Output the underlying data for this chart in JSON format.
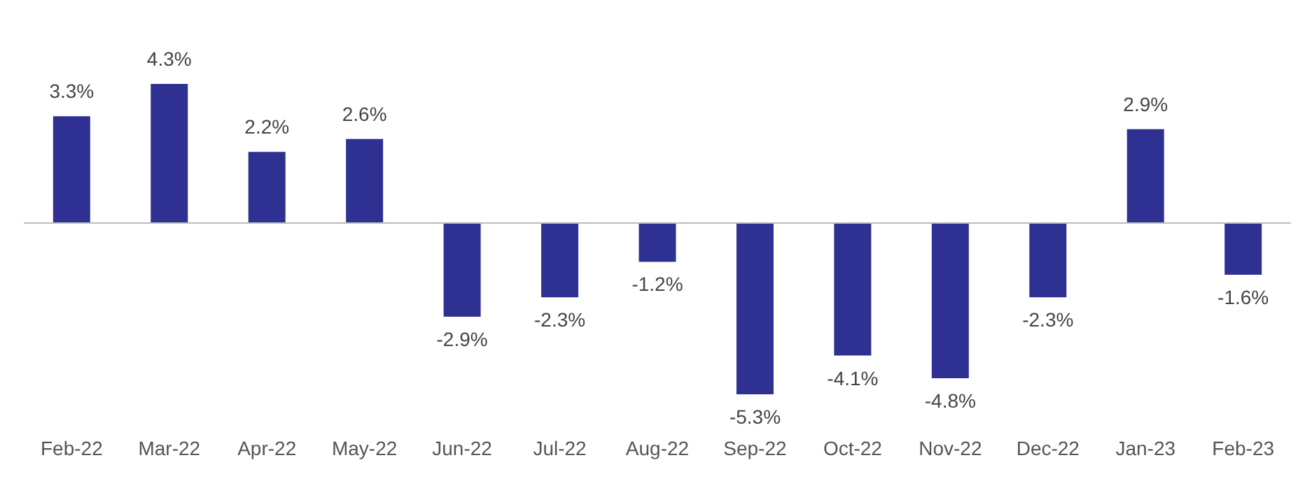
{
  "chart_data": {
    "type": "bar",
    "categories": [
      "Feb-22",
      "Mar-22",
      "Apr-22",
      "May-22",
      "Jun-22",
      "Jul-22",
      "Aug-22",
      "Sep-22",
      "Oct-22",
      "Nov-22",
      "Dec-22",
      "Jan-23",
      "Feb-23"
    ],
    "values": [
      3.3,
      4.3,
      2.2,
      2.6,
      -2.9,
      -2.3,
      -1.2,
      -5.3,
      -4.1,
      -4.8,
      -2.3,
      2.9,
      -1.6
    ],
    "value_labels": [
      "3.3%",
      "4.3%",
      "2.2%",
      "2.6%",
      "-2.9%",
      "-2.3%",
      "-1.2%",
      "-5.3%",
      "-4.1%",
      "-4.8%",
      "-2.3%",
      "2.9%",
      "-1.6%"
    ],
    "color": "#2e3192",
    "grid": false,
    "tick_labels": "x"
  }
}
